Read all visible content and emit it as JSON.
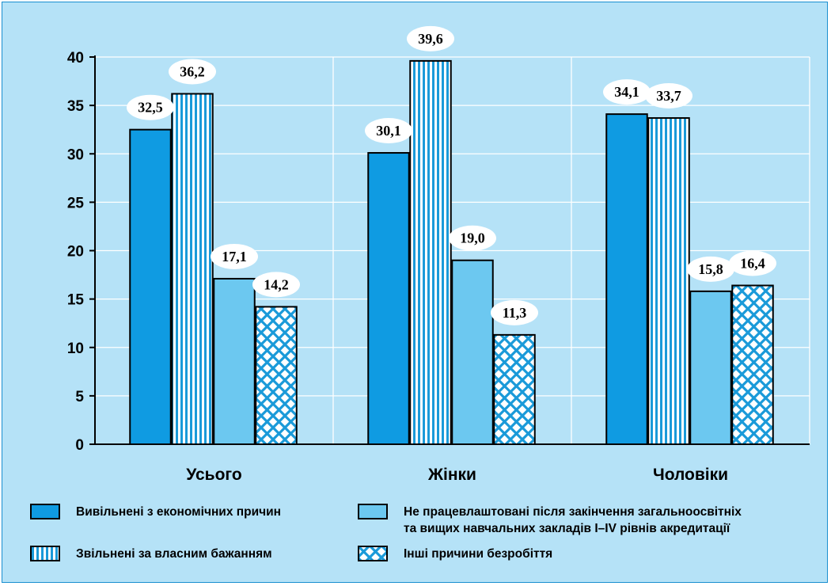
{
  "colors": {
    "background": "#b5e2f7",
    "economic": "#0f9be2",
    "own_will": "#ffffff",
    "own_will_stripe": "#1a9ad9",
    "not_employed": "#6cc8f0",
    "other": "#ffffff",
    "other_hatch": "#1a9ad9",
    "axis": "#000000",
    "grid": "#ffffff"
  },
  "chart_data": {
    "type": "bar",
    "categories": [
      "Усього",
      "Жінки",
      "Чоловіки"
    ],
    "series": [
      {
        "name": "Вивільнені з економічних причин",
        "pattern": "solid",
        "values": [
          32.5,
          30.1,
          34.1
        ],
        "labels": [
          "32,5",
          "30,1",
          "34,1"
        ]
      },
      {
        "name": "Звільнені за власним бажанням",
        "pattern": "vertical-stripes",
        "values": [
          36.2,
          39.6,
          33.7
        ],
        "labels": [
          "36,2",
          "39,6",
          "33,7"
        ]
      },
      {
        "name": "Не працевлаштовані після закінчення загальноосвітніх\nта вищих навчальних закладів I–IV рівнів акредитації",
        "pattern": "solid-light",
        "values": [
          17.1,
          19.0,
          15.8
        ],
        "labels": [
          "17,1",
          "19,0",
          "15,8"
        ]
      },
      {
        "name": "Інші причини безробіття",
        "pattern": "crosshatch",
        "values": [
          14.2,
          11.3,
          16.4
        ],
        "labels": [
          "14,2",
          "11,3",
          "16,4"
        ]
      }
    ],
    "ylim": [
      0,
      40
    ],
    "yticks": [
      0,
      5,
      10,
      15,
      20,
      25,
      30,
      35,
      40
    ],
    "grid": true,
    "legend_position": "bottom"
  }
}
